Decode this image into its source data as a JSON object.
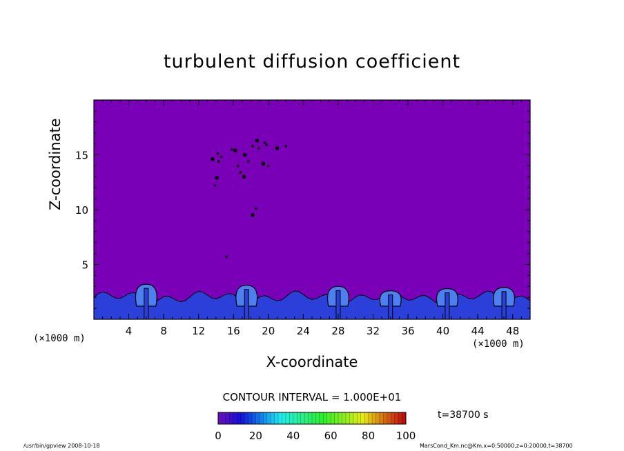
{
  "chart_data": {
    "type": "heatmap",
    "title": "turbulent diffusion coefficient",
    "xlabel": "X-coordinate",
    "ylabel": "Z-coordinate",
    "x_unit": "(×1000 m)",
    "xlim": [
      0,
      50
    ],
    "ylim": [
      0,
      20
    ],
    "x_ticks": [
      4,
      8,
      12,
      16,
      20,
      24,
      28,
      32,
      36,
      40,
      44,
      48
    ],
    "y_ticks": [
      5,
      10,
      15
    ],
    "background_value": 0,
    "plumes": [
      {
        "x": 6.0,
        "top": 3.2
      },
      {
        "x": 17.5,
        "top": 3.1
      },
      {
        "x": 28.0,
        "top": 3.0
      },
      {
        "x": 34.0,
        "top": 2.6
      },
      {
        "x": 40.5,
        "top": 2.8
      },
      {
        "x": 47.0,
        "top": 2.9
      }
    ],
    "boundary_layer_top": 2.0,
    "colorbar": {
      "ticks": [
        0,
        20,
        40,
        60,
        80,
        100
      ],
      "min": 0,
      "max": 100
    },
    "contour_interval": "CONTOUR INTERVAL = 1.000E+01",
    "time": "t=38700 s"
  },
  "footer": {
    "left": "/usr/bin/gpview   2008-10-18",
    "right": "MarsCond_Km.nc@Km,x=0:50000,z=0:20000,t=38700"
  },
  "colors": {
    "background_field": "#7a00b8",
    "boundary_layer": "#2a40d8",
    "boundary_layer_light": "#4d7ff0",
    "contour": "#000000"
  }
}
